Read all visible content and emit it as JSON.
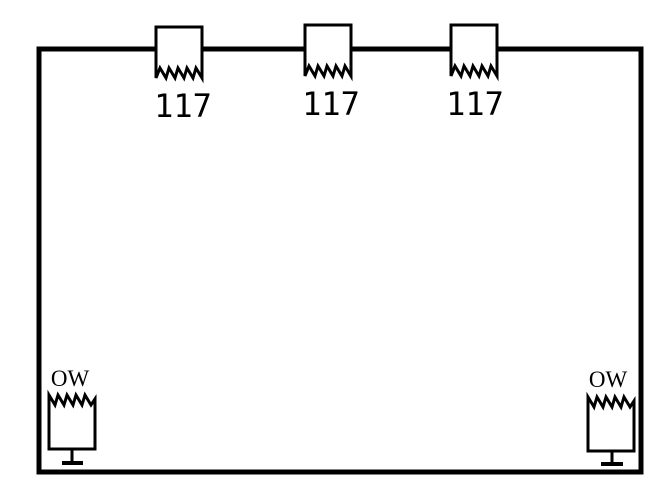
{
  "diagram": {
    "colors": {
      "stroke": "#000000",
      "background": "#ffffff",
      "fill": "#ffffff"
    },
    "top_devices": [
      {
        "label": "117",
        "icon": "sawtooth-box-icon"
      },
      {
        "label": "117",
        "icon": "sawtooth-box-icon"
      },
      {
        "label": "117",
        "icon": "sawtooth-box-icon"
      }
    ],
    "bottom_devices": [
      {
        "label": "OW",
        "icon": "sawtooth-box-grounded-icon"
      },
      {
        "label": "OW",
        "icon": "sawtooth-box-grounded-icon"
      }
    ]
  }
}
